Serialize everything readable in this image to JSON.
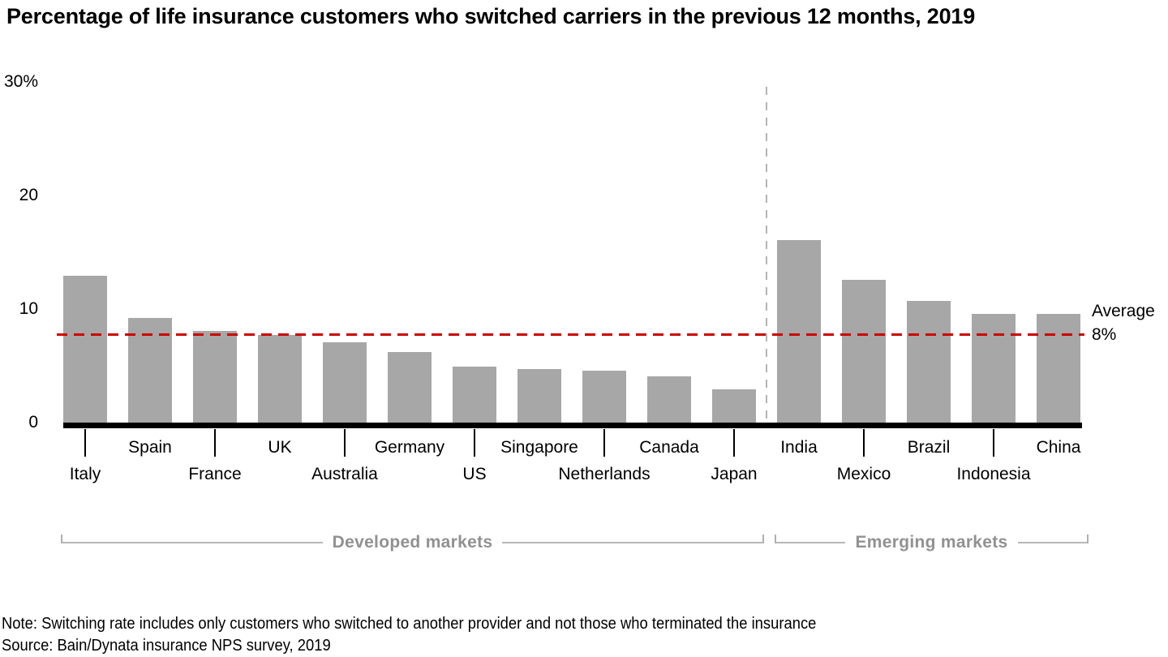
{
  "title": "Percentage of life insurance customers who switched carriers in the previous 12 months, 2019",
  "chart_data": {
    "type": "bar",
    "title": "Percentage of life insurance customers who switched carriers in the previous 12 months, 2019",
    "categories": [
      "Italy",
      "Spain",
      "France",
      "UK",
      "Australia",
      "Germany",
      "US",
      "Singapore",
      "Netherlands",
      "Canada",
      "Japan",
      "India",
      "Mexico",
      "Brazil",
      "Indonesia",
      "China"
    ],
    "values": [
      12.9,
      9.2,
      8.1,
      7.7,
      7.1,
      6.2,
      4.9,
      4.7,
      4.6,
      4.1,
      2.9,
      16.1,
      12.6,
      10.7,
      9.6,
      9.6
    ],
    "unit": "%",
    "xlabel": "",
    "ylabel": "",
    "ylim": [
      0,
      30
    ],
    "yticks": [
      {
        "value": 30,
        "label": "30%"
      },
      {
        "value": 20,
        "label": "20"
      },
      {
        "value": 10,
        "label": "10"
      },
      {
        "value": 0,
        "label": "0"
      }
    ],
    "grid": false,
    "legend": false,
    "bar_color": "#a7a7a7",
    "axis_color": "#000000",
    "average_line": {
      "value": 7.8,
      "label_line1": "Average",
      "label_line2": "8%",
      "color": "#cc0000",
      "style": "dashed"
    },
    "separator_after_index": 10,
    "separator_color": "#b4b4b4",
    "groups": [
      {
        "label": "Developed markets",
        "from": 0,
        "to": 10
      },
      {
        "label": "Emerging markets",
        "from": 11,
        "to": 15
      }
    ]
  },
  "footer": {
    "note": "Note: Switching rate includes only customers who switched to another provider and not those who terminated the insurance",
    "source": "Source: Bain/Dynata insurance NPS survey, 2019"
  }
}
